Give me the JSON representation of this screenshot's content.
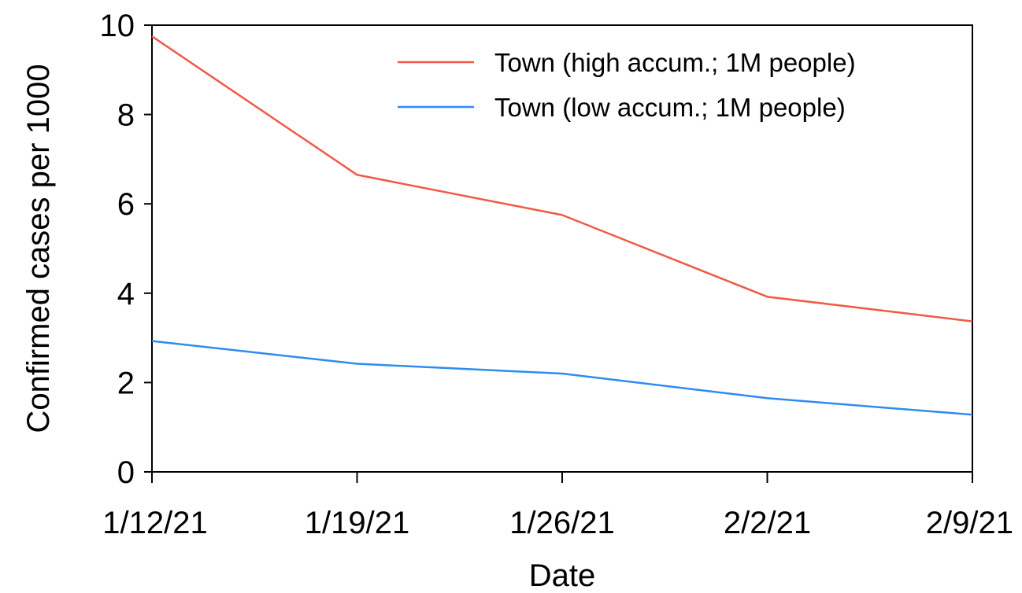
{
  "chart_data": {
    "type": "line",
    "x": [
      "1/12/21",
      "1/19/21",
      "1/26/21",
      "2/2/21",
      "2/9/21"
    ],
    "categories": [
      "1/12/21",
      "1/19/21",
      "1/26/21",
      "2/2/21",
      "2/9/21"
    ],
    "series": [
      {
        "name": "Town (high accum.; 1M people)",
        "color": "#f05a46",
        "values": [
          9.75,
          6.65,
          5.75,
          3.92,
          3.37
        ]
      },
      {
        "name": "Town (low accum.; 1M people)",
        "color": "#2e8cf0",
        "values": [
          2.93,
          2.42,
          2.2,
          1.65,
          1.28
        ]
      }
    ],
    "xlabel": "Date",
    "ylabel": "Confirmed cases per 1000",
    "ylim": [
      0,
      10
    ],
    "yticks": [
      0,
      2,
      4,
      6,
      8,
      10
    ],
    "grid": false,
    "legend_position": "top-right"
  }
}
